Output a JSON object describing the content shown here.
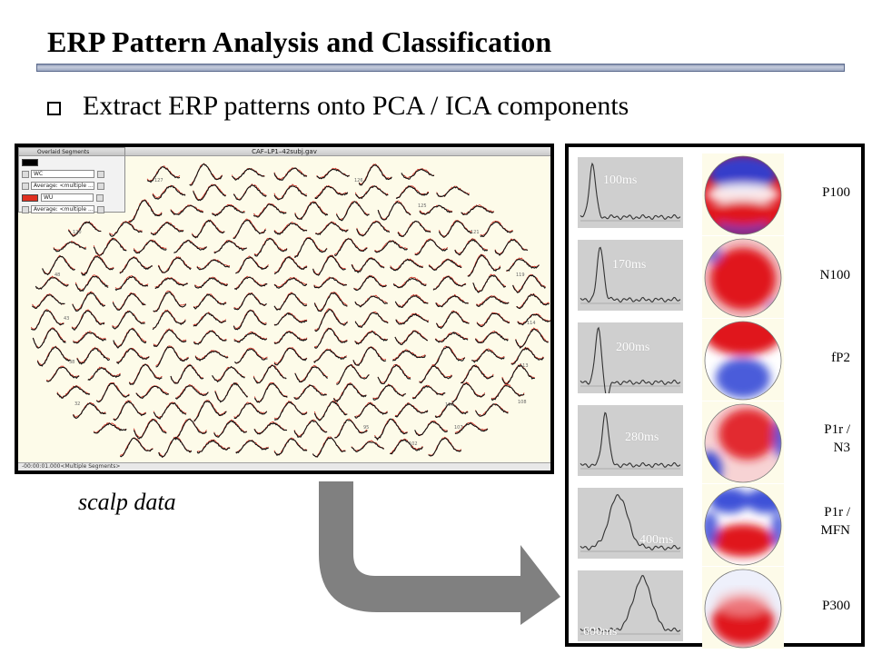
{
  "slide": {
    "title": "ERP Pattern Analysis and Classification",
    "bullet": "Extract ERP patterns onto PCA / ICA components",
    "scalp_label": "scalp data"
  },
  "screenshot": {
    "window_title": "CAF–LP1–42subj.gav",
    "overlay_title": "Overlaid Segments",
    "rows": [
      {
        "color": "#000000",
        "field1": "WC",
        "field2": "Average: <multiple ..."
      },
      {
        "color": "#e03020",
        "field1": "WU",
        "field2": "Average: <multiple ..."
      }
    ],
    "status": "-00:00:01.000<Multiple Segments>",
    "channel_labels": [
      "127",
      "126",
      "128",
      "125",
      "120",
      "121",
      "48",
      "119",
      "43",
      "114",
      "38",
      "113",
      "32",
      "108",
      "100",
      "107",
      "95",
      "102"
    ]
  },
  "components": [
    {
      "latency": "100ms",
      "name_lines": [
        "P100"
      ],
      "peak": 0.12,
      "topo": "p100"
    },
    {
      "latency": "170ms",
      "name_lines": [
        "N100"
      ],
      "peak": 0.2,
      "topo": "n100"
    },
    {
      "latency": "200ms",
      "name_lines": [
        "fP2"
      ],
      "peak": 0.18,
      "topo": "fp2"
    },
    {
      "latency": "280ms",
      "name_lines": [
        "P1r /",
        "N3"
      ],
      "peak": 0.25,
      "topo": "p1rn3"
    },
    {
      "latency": "400ms",
      "name_lines": [
        "P1r /",
        "MFN"
      ],
      "peak": 0.38,
      "topo": "p1rmfn"
    },
    {
      "latency": "600ms",
      "name_lines": [
        "P300"
      ],
      "peak": 0.62,
      "topo": "p300"
    }
  ],
  "colors": {
    "trace_bg": "#cfcfcf",
    "topo_red": "#e0161d",
    "topo_blue": "#2a3fd4",
    "arrow": "#808080"
  }
}
